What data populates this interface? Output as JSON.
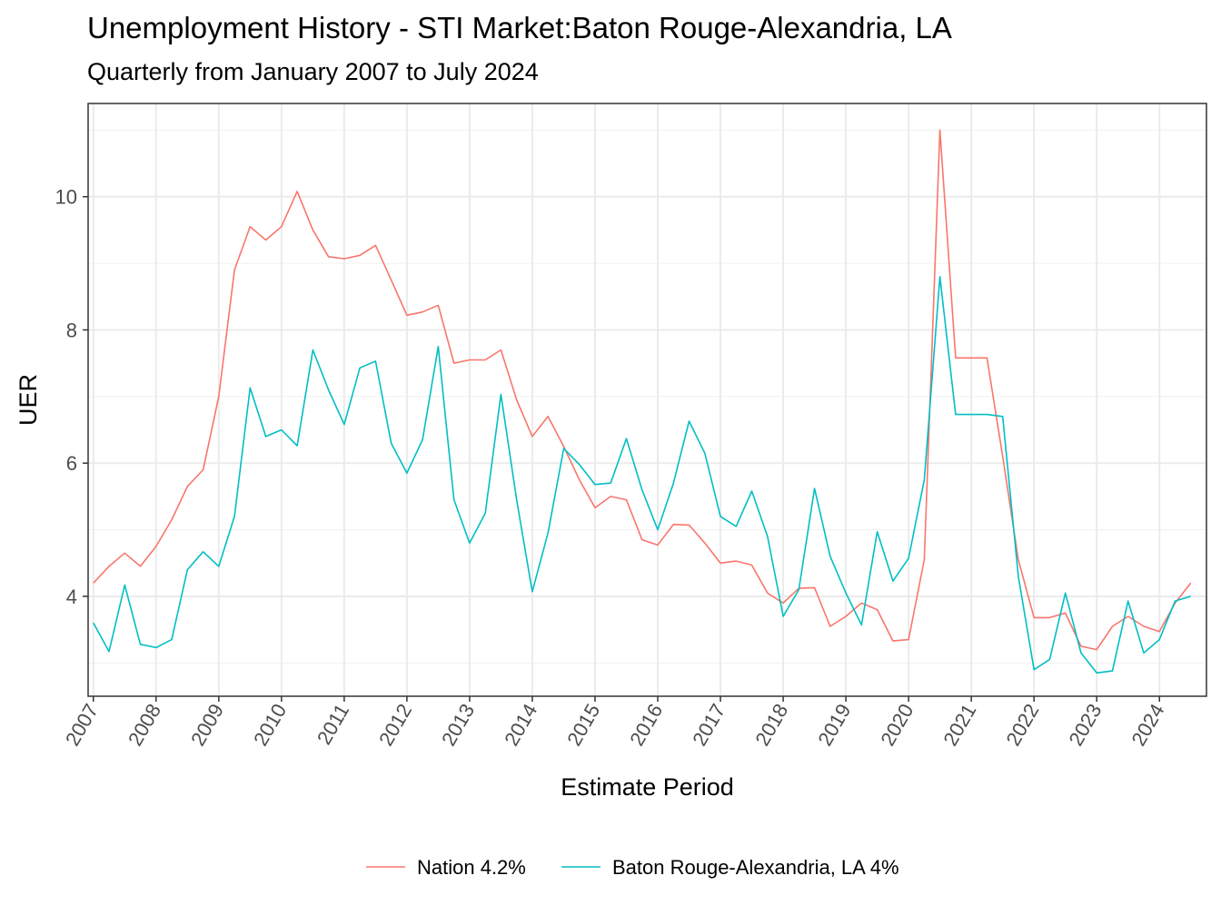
{
  "chart_data": {
    "type": "line",
    "title": "Unemployment History - STI Market:Baton Rouge-Alexandria, LA",
    "subtitle": "Quarterly from January 2007 to July 2024",
    "xlabel": "Estimate Period",
    "ylabel": "UER",
    "x_tick_labels": [
      "2007",
      "2008",
      "2009",
      "2010",
      "2011",
      "2012",
      "2013",
      "2014",
      "2015",
      "2016",
      "2017",
      "2018",
      "2019",
      "2020",
      "2021",
      "2022",
      "2023",
      "2024"
    ],
    "y_ticks": [
      4,
      6,
      8,
      10
    ],
    "ylim": [
      2.5,
      11.4
    ],
    "xlim": [
      "2006-12",
      "2024-10"
    ],
    "grid": true,
    "legend_position": "bottom",
    "x": [
      "2007-01",
      "2007-04",
      "2007-07",
      "2007-10",
      "2008-01",
      "2008-04",
      "2008-07",
      "2008-10",
      "2009-01",
      "2009-04",
      "2009-07",
      "2009-10",
      "2010-01",
      "2010-04",
      "2010-07",
      "2010-10",
      "2011-01",
      "2011-04",
      "2011-07",
      "2011-10",
      "2012-01",
      "2012-04",
      "2012-07",
      "2012-10",
      "2013-01",
      "2013-04",
      "2013-07",
      "2013-10",
      "2014-01",
      "2014-04",
      "2014-07",
      "2014-10",
      "2015-01",
      "2015-04",
      "2015-07",
      "2015-10",
      "2016-01",
      "2016-04",
      "2016-07",
      "2016-10",
      "2017-01",
      "2017-04",
      "2017-07",
      "2017-10",
      "2018-01",
      "2018-04",
      "2018-07",
      "2018-10",
      "2019-01",
      "2019-04",
      "2019-07",
      "2019-10",
      "2020-01",
      "2020-04",
      "2020-07",
      "2020-10",
      "2021-01",
      "2021-04",
      "2021-07",
      "2021-10",
      "2022-01",
      "2022-04",
      "2022-07",
      "2022-10",
      "2023-01",
      "2023-04",
      "2023-07",
      "2023-10",
      "2024-01",
      "2024-04",
      "2024-07"
    ],
    "series": [
      {
        "name": "Nation 4.2%",
        "color": "#F8766D",
        "values": [
          4.2,
          4.45,
          4.65,
          4.45,
          4.75,
          5.15,
          5.65,
          5.9,
          7.0,
          8.9,
          9.55,
          9.35,
          9.55,
          10.08,
          9.5,
          9.1,
          9.07,
          9.12,
          9.27,
          8.75,
          8.22,
          8.27,
          8.37,
          7.5,
          7.55,
          7.55,
          7.7,
          6.95,
          6.4,
          6.7,
          6.25,
          5.75,
          5.33,
          5.5,
          5.45,
          4.85,
          4.77,
          5.08,
          5.07,
          4.8,
          4.5,
          4.53,
          4.47,
          4.05,
          3.9,
          4.12,
          4.13,
          3.55,
          3.7,
          3.9,
          3.8,
          3.33,
          3.35,
          4.55,
          11.0,
          7.58,
          7.58,
          7.58,
          6.1,
          4.55,
          3.68,
          3.68,
          3.75,
          3.25,
          3.2,
          3.55,
          3.7,
          3.55,
          3.47,
          3.9,
          4.2
        ]
      },
      {
        "name": "Baton Rouge-Alexandria, LA 4%",
        "color": "#00BFC4",
        "values": [
          3.6,
          3.17,
          4.17,
          3.28,
          3.23,
          3.35,
          4.4,
          4.67,
          4.45,
          5.2,
          7.13,
          6.4,
          6.5,
          6.26,
          7.7,
          7.1,
          6.58,
          7.43,
          7.53,
          6.3,
          5.85,
          6.35,
          7.75,
          5.45,
          4.8,
          5.25,
          7.03,
          5.45,
          4.07,
          4.95,
          6.22,
          5.98,
          5.68,
          5.7,
          6.37,
          5.6,
          5.0,
          5.7,
          6.63,
          6.15,
          5.2,
          5.05,
          5.58,
          4.9,
          3.7,
          4.1,
          5.62,
          4.6,
          4.05,
          3.57,
          4.97,
          4.23,
          4.57,
          5.75,
          8.8,
          6.73,
          6.73,
          6.73,
          6.7,
          4.3,
          2.9,
          3.05,
          4.05,
          3.15,
          2.85,
          2.88,
          3.93,
          3.15,
          3.35,
          3.93,
          4.0
        ]
      }
    ]
  }
}
